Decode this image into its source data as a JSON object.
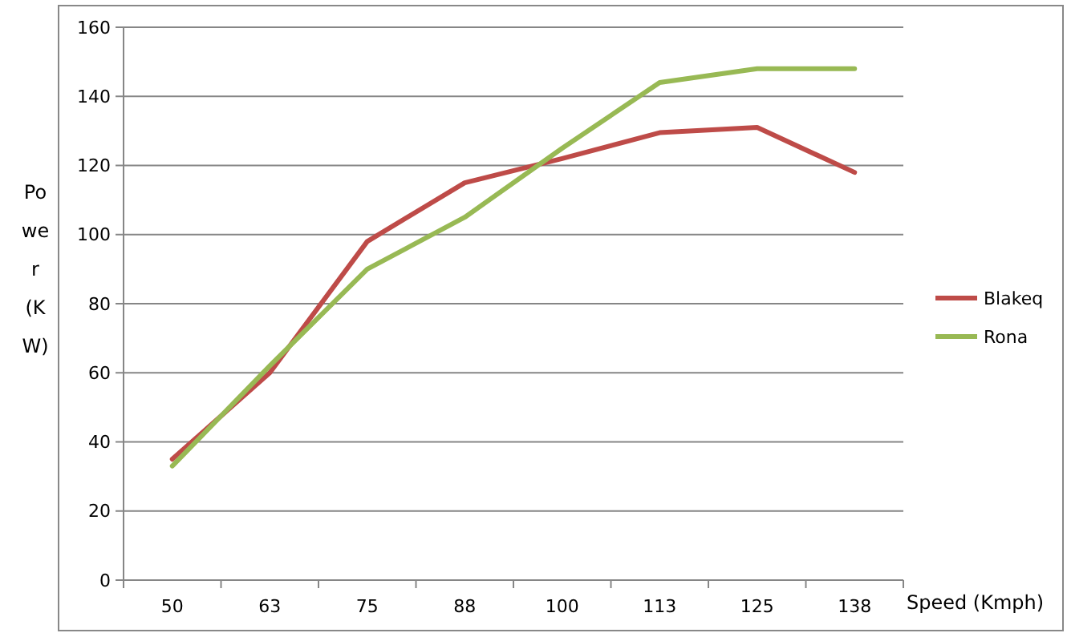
{
  "chart_data": {
    "type": "line",
    "xlabel": "Speed (Kmph)",
    "ylabel": "Power (KW)",
    "categories": [
      "50",
      "63",
      "75",
      "88",
      "100",
      "113",
      "125",
      "138"
    ],
    "series": [
      {
        "name": "Blakeq",
        "color": "#be4b48",
        "values": [
          35,
          60,
          98,
          115,
          122,
          129.5,
          131,
          118
        ]
      },
      {
        "name": "Rona",
        "color": "#98b954",
        "values": [
          33,
          62,
          90,
          105,
          125,
          144,
          148,
          148
        ]
      }
    ],
    "ylim": [
      0,
      160
    ],
    "yticks": [
      0,
      20,
      40,
      60,
      80,
      100,
      120,
      140,
      160
    ],
    "grid": "y",
    "legend": "right",
    "marker": "none",
    "line_style": "solid"
  }
}
